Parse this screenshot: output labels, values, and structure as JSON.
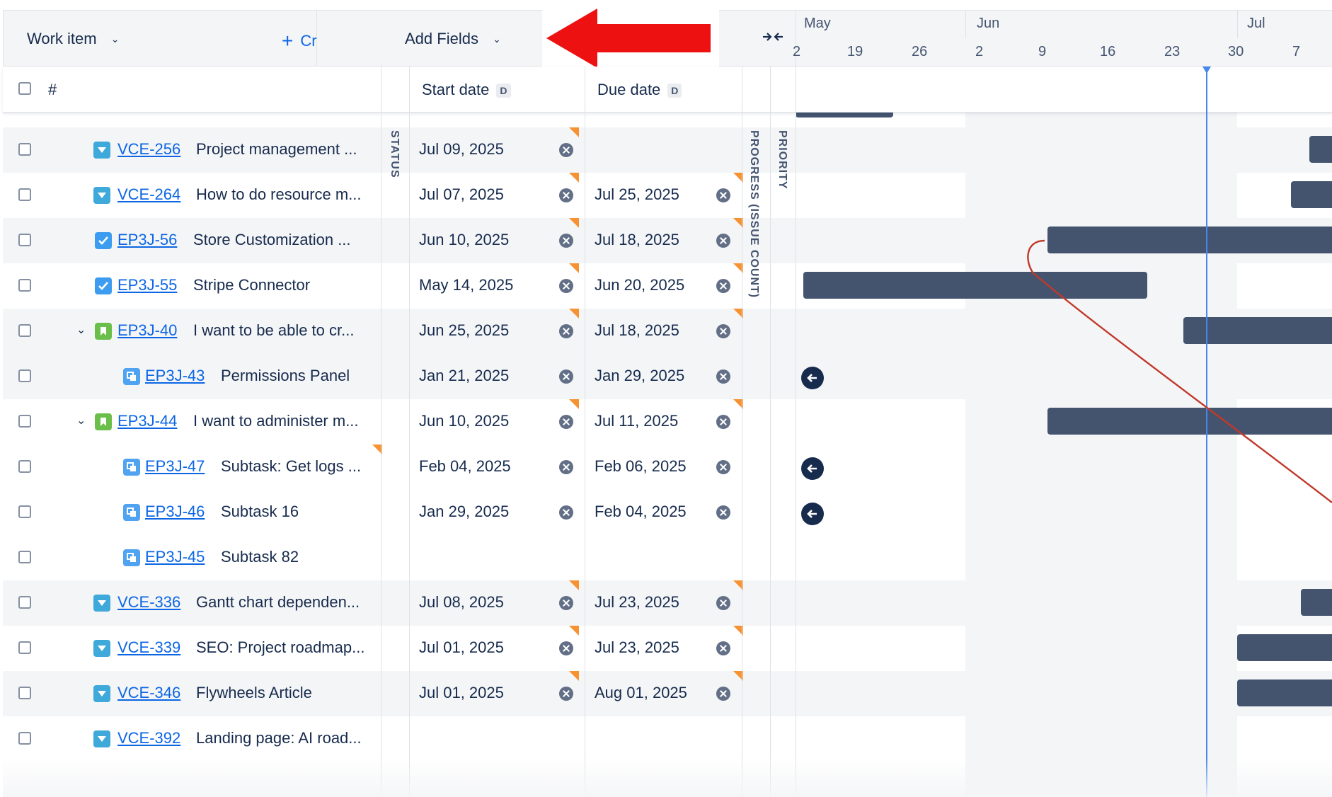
{
  "header": {
    "work_item_label": "Work item",
    "create_label": "Create",
    "add_fields_label": "Add Fields",
    "months": [
      "May",
      "Jun",
      "Jul"
    ],
    "days": [
      "2",
      "19",
      "26",
      "2",
      "9",
      "16",
      "23",
      "30",
      "7"
    ]
  },
  "columns": {
    "hash": "#",
    "start_date": "Start date",
    "due_date": "Due date",
    "date_badge": "D",
    "status": "STATUS",
    "progress": "PROGRESS (ISSUE COUNT)",
    "priority": "PRIORITY"
  },
  "rows": [
    {
      "key": "VCE-256",
      "summary": "Project management ...",
      "start": "Jul 09, 2025",
      "due": ""
    },
    {
      "key": "VCE-264",
      "summary": "How to do resource m...",
      "start": "Jul 07, 2025",
      "due": "Jul 25, 2025"
    },
    {
      "key": "EP3J-56",
      "summary": "Store Customization ...",
      "start": "Jun 10, 2025",
      "due": "Jul 18, 2025"
    },
    {
      "key": "EP3J-55",
      "summary": "Stripe Connector",
      "start": "May 14, 2025",
      "due": "Jun 20, 2025"
    },
    {
      "key": "EP3J-40",
      "summary": "I want to be able to cr...",
      "start": "Jun 25, 2025",
      "due": "Jul 18, 2025"
    },
    {
      "key": "EP3J-43",
      "summary": "Permissions Panel",
      "start": "Jan 21, 2025",
      "due": "Jan 29, 2025"
    },
    {
      "key": "EP3J-44",
      "summary": "I want to administer m...",
      "start": "Jun 10, 2025",
      "due": "Jul 11, 2025"
    },
    {
      "key": "EP3J-47",
      "summary": "Subtask: Get logs ...",
      "start": "Feb 04, 2025",
      "due": "Feb 06, 2025"
    },
    {
      "key": "EP3J-46",
      "summary": "Subtask 16",
      "start": "Jan 29, 2025",
      "due": "Feb 04, 2025"
    },
    {
      "key": "EP3J-45",
      "summary": "Subtask 82",
      "start": "",
      "due": ""
    },
    {
      "key": "VCE-336",
      "summary": "Gantt chart dependen...",
      "start": "Jul 08, 2025",
      "due": "Jul 23, 2025"
    },
    {
      "key": "VCE-339",
      "summary": "SEO: Project roadmap...",
      "start": "Jul 01, 2025",
      "due": "Jul 23, 2025"
    },
    {
      "key": "VCE-346",
      "summary": "Flywheels Article",
      "start": "Jul 01, 2025",
      "due": "Aug 01, 2025"
    },
    {
      "key": "VCE-392",
      "summary": "Landing page: AI road...",
      "start": "",
      "due": ""
    }
  ],
  "colors": {
    "accent": "#0c66e4",
    "bar": "#44546f",
    "today_line": "#4688ec",
    "dependency": "#c0392b",
    "annotation_arrow": "#ee1111",
    "flag": "#f79232"
  }
}
